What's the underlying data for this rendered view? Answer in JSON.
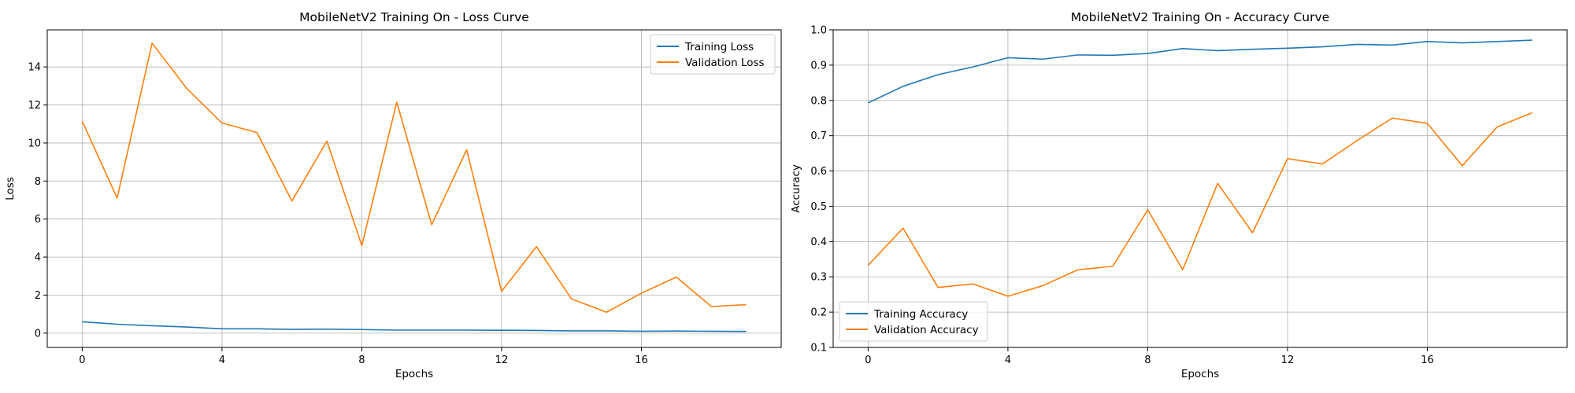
{
  "chart_data": [
    {
      "type": "line",
      "title": "MobileNetV2 Training On - Loss Curve",
      "xlabel": "Epochs",
      "ylabel": "Loss",
      "xlim": [
        -1,
        20
      ],
      "ylim": [
        -0.75,
        15.95
      ],
      "xticks": [
        0,
        4,
        8,
        12,
        16
      ],
      "yticks": [
        0,
        2,
        4,
        6,
        8,
        10,
        12,
        14
      ],
      "grid": true,
      "legend_position": "top-right",
      "x": [
        0,
        1,
        2,
        3,
        4,
        5,
        6,
        7,
        8,
        9,
        10,
        11,
        12,
        13,
        14,
        15,
        16,
        17,
        18,
        19
      ],
      "series": [
        {
          "name": "Training Loss",
          "color": "#1f77b4",
          "values": [
            0.6,
            0.47,
            0.39,
            0.32,
            0.23,
            0.23,
            0.2,
            0.21,
            0.19,
            0.16,
            0.16,
            0.16,
            0.15,
            0.14,
            0.12,
            0.12,
            0.1,
            0.11,
            0.1,
            0.09
          ]
        },
        {
          "name": "Validation Loss",
          "color": "#ff7f0e",
          "values": [
            11.15,
            7.1,
            15.25,
            12.85,
            11.05,
            10.55,
            6.95,
            10.1,
            4.6,
            12.15,
            5.7,
            9.65,
            2.2,
            4.55,
            1.8,
            1.1,
            2.1,
            2.95,
            1.4,
            1.5
          ]
        }
      ]
    },
    {
      "type": "line",
      "title": "MobileNetV2 Training On - Accuracy Curve",
      "xlabel": "Epochs",
      "ylabel": "Accuracy",
      "xlim": [
        -1,
        20
      ],
      "ylim": [
        0.1,
        1.0
      ],
      "xticks": [
        0,
        4,
        8,
        12,
        16
      ],
      "yticks": [
        0.1,
        0.2,
        0.3,
        0.4,
        0.5,
        0.6,
        0.7,
        0.8,
        0.9,
        1.0
      ],
      "grid": true,
      "legend_position": "bottom-left",
      "x": [
        0,
        1,
        2,
        3,
        4,
        5,
        6,
        7,
        8,
        9,
        10,
        11,
        12,
        13,
        14,
        15,
        16,
        17,
        18,
        19
      ],
      "series": [
        {
          "name": "Training Accuracy",
          "color": "#1f77b4",
          "values": [
            0.793,
            0.84,
            0.873,
            0.895,
            0.921,
            0.917,
            0.929,
            0.928,
            0.933,
            0.947,
            0.941,
            0.945,
            0.948,
            0.952,
            0.959,
            0.957,
            0.967,
            0.963,
            0.967,
            0.971
          ]
        },
        {
          "name": "Validation Accuracy",
          "color": "#ff7f0e",
          "values": [
            0.333,
            0.438,
            0.27,
            0.28,
            0.245,
            0.275,
            0.32,
            0.33,
            0.49,
            0.32,
            0.565,
            0.425,
            0.635,
            0.62,
            0.687,
            0.75,
            0.735,
            0.615,
            0.725,
            0.765
          ]
        }
      ]
    }
  ]
}
